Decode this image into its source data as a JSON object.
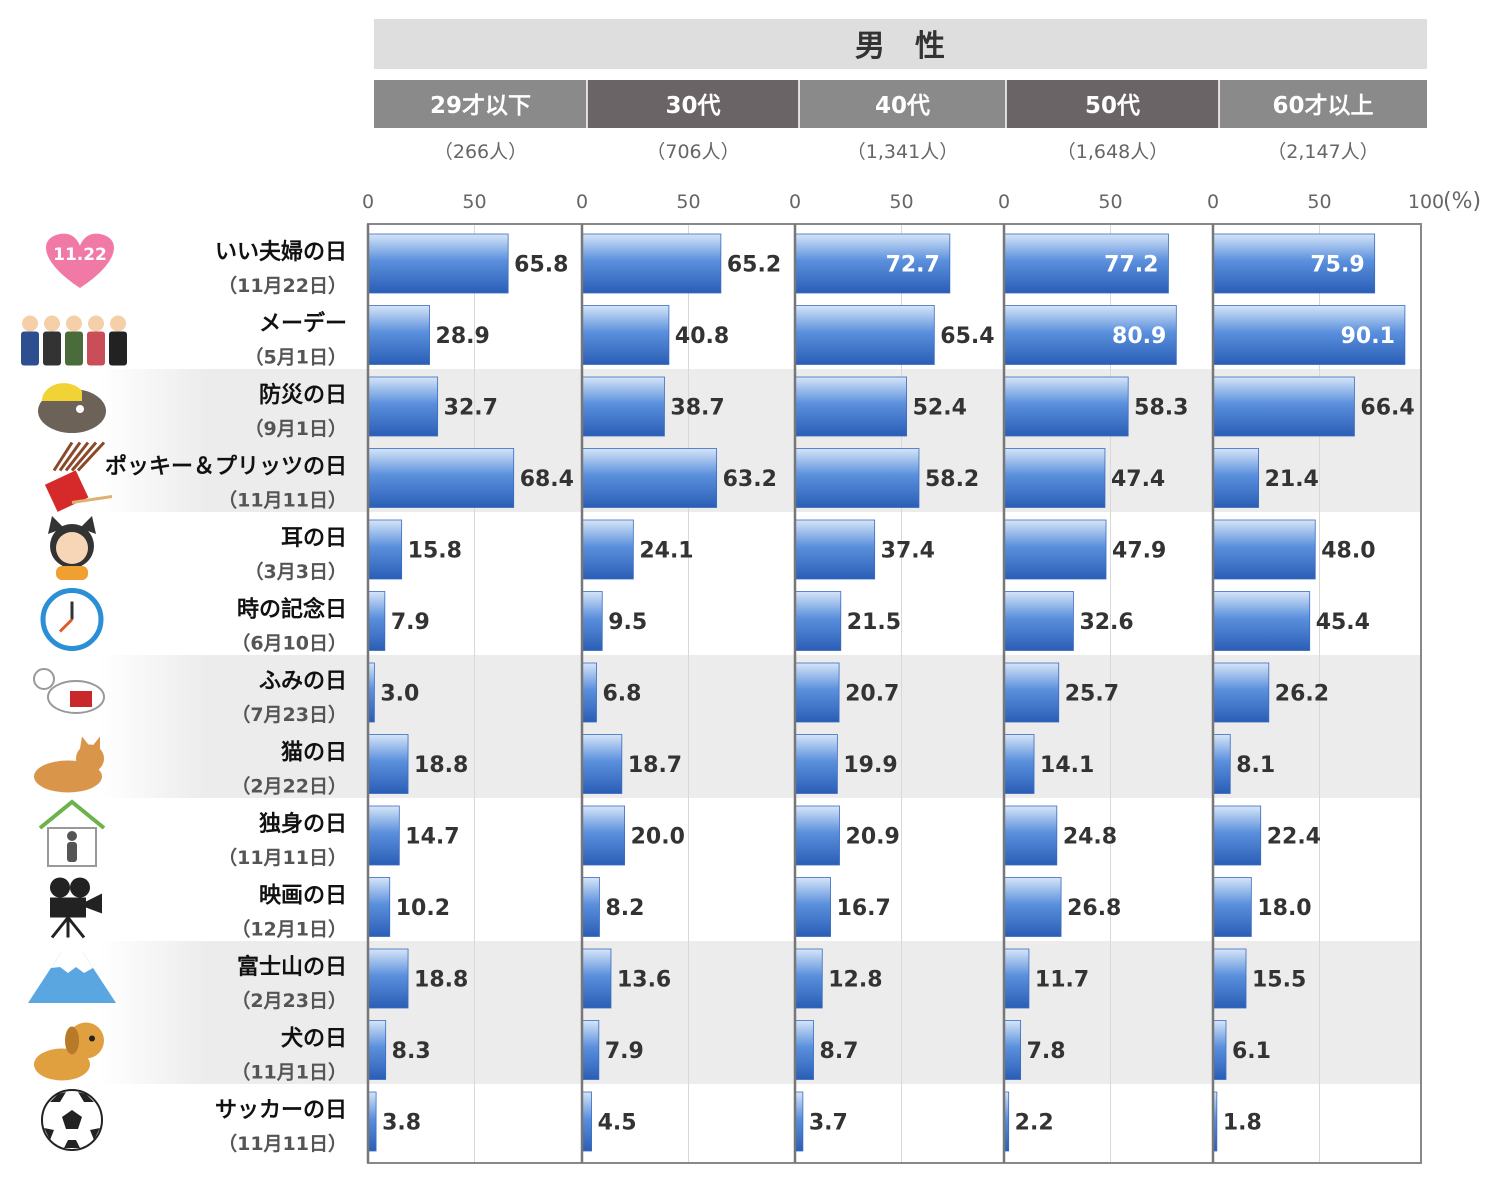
{
  "chart_data": {
    "type": "bar",
    "orientation": "horizontal",
    "title": "男　性",
    "unit": "(%)",
    "axis_ticks": [
      "0",
      "50",
      "100"
    ],
    "ylim": [
      0,
      100
    ],
    "grid": true,
    "categories": [
      {
        "name": "いい夫婦の日",
        "date": "（11月22日）",
        "icon": "heart-1122-icon"
      },
      {
        "name": "メーデー",
        "date": "（5月1日）",
        "icon": "workers-group-icon"
      },
      {
        "name": "防災の日",
        "date": "（9月1日）",
        "icon": "catfish-helmet-icon"
      },
      {
        "name": "ポッキー＆プリッツの日",
        "date": "（11月11日）",
        "icon": "pocky-sticks-icon"
      },
      {
        "name": "耳の日",
        "date": "（3月3日）",
        "icon": "cat-ears-girl-icon"
      },
      {
        "name": "時の記念日",
        "date": "（6月10日）",
        "icon": "clock-icon"
      },
      {
        "name": "ふみの日",
        "date": "（7月23日）",
        "icon": "goat-mail-icon"
      },
      {
        "name": "猫の日",
        "date": "（2月22日）",
        "icon": "cat-icon"
      },
      {
        "name": "独身の日",
        "date": "（11月11日）",
        "icon": "house-person-icon"
      },
      {
        "name": "映画の日",
        "date": "（12月1日）",
        "icon": "movie-camera-icon"
      },
      {
        "name": "富士山の日",
        "date": "（2月23日）",
        "icon": "mount-fuji-icon"
      },
      {
        "name": "犬の日",
        "date": "（11月1日）",
        "icon": "dog-icon"
      },
      {
        "name": "サッカーの日",
        "date": "（11月11日）",
        "icon": "soccer-ball-icon"
      }
    ],
    "series": [
      {
        "name": "29才以下",
        "count": "（266人）",
        "header_color": "#8a8a8a",
        "values": [
          65.8,
          28.9,
          32.7,
          68.4,
          15.8,
          7.9,
          3.0,
          18.8,
          14.7,
          10.2,
          18.8,
          8.3,
          3.8
        ],
        "labels": [
          "65.8",
          "28.9",
          "32.7",
          "68.4",
          "15.8",
          "7.9",
          "3.0",
          "18.8",
          "14.7",
          "10.2",
          "18.8",
          "8.3",
          "3.8"
        ],
        "top3": []
      },
      {
        "name": "30代",
        "count": "（706人）",
        "header_color": "#6b6466",
        "values": [
          65.2,
          40.8,
          38.7,
          63.2,
          24.1,
          9.5,
          6.8,
          18.7,
          20.0,
          8.2,
          13.6,
          7.9,
          4.5
        ],
        "labels": [
          "65.2",
          "40.8",
          "38.7",
          "63.2",
          "24.1",
          "9.5",
          "6.8",
          "18.7",
          "20.0",
          "8.2",
          "13.6",
          "7.9",
          "4.5"
        ],
        "top3": []
      },
      {
        "name": "40代",
        "count": "（1,341人）",
        "header_color": "#8a8a8a",
        "values": [
          72.7,
          65.4,
          52.4,
          58.2,
          37.4,
          21.5,
          20.7,
          19.9,
          20.9,
          16.7,
          12.8,
          8.7,
          3.7
        ],
        "labels": [
          "72.7",
          "65.4",
          "52.4",
          "58.2",
          "37.4",
          "21.5",
          "20.7",
          "19.9",
          "20.9",
          "16.7",
          "12.8",
          "8.7",
          "3.7"
        ],
        "top3": [
          0
        ]
      },
      {
        "name": "50代",
        "count": "（1,648人）",
        "header_color": "#6b6466",
        "values": [
          77.2,
          80.9,
          58.3,
          47.4,
          47.9,
          32.6,
          25.7,
          14.1,
          24.8,
          26.8,
          11.7,
          7.8,
          2.2
        ],
        "labels": [
          "77.2",
          "80.9",
          "58.3",
          "47.4",
          "47.9",
          "32.6",
          "25.7",
          "14.1",
          "24.8",
          "26.8",
          "11.7",
          "7.8",
          "2.2"
        ],
        "top3": [
          0,
          1
        ]
      },
      {
        "name": "60才以上",
        "count": "（2,147人）",
        "header_color": "#8a8a8a",
        "values": [
          75.9,
          90.1,
          66.4,
          21.4,
          48.0,
          45.4,
          26.2,
          8.1,
          22.4,
          18.0,
          15.5,
          6.1,
          1.8
        ],
        "labels": [
          "75.9",
          "90.1",
          "66.4",
          "21.4",
          "48.0",
          "45.4",
          "26.2",
          "8.1",
          "22.4",
          "18.0",
          "15.5",
          "6.1",
          "1.8"
        ],
        "top3": [
          0,
          1
        ]
      }
    ],
    "colors": {
      "bar_top": "#cfe0f7",
      "bar_mid": "#4f86d9",
      "bar_bottom": "#2a5fb8",
      "band": "#ececec",
      "header_top": "#dedede"
    }
  }
}
